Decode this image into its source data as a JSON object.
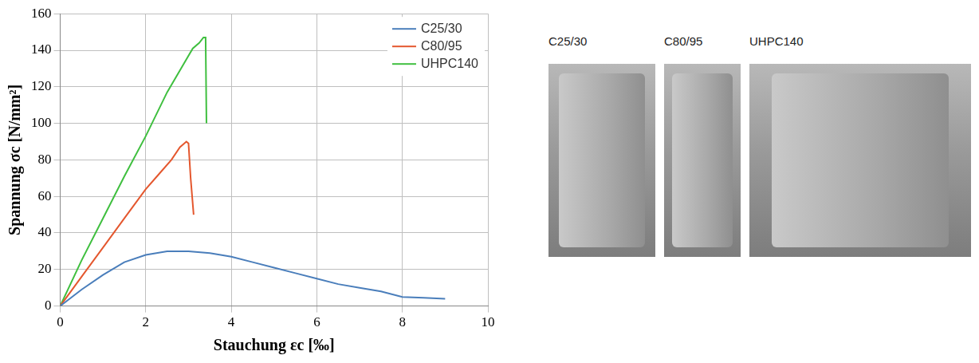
{
  "chart_data": {
    "type": "line",
    "x_label": "Stauchung εc [‰]",
    "y_label": "Spannung σc [N/mm²]",
    "xlim": [
      0,
      10
    ],
    "xticks": [
      0,
      2,
      4,
      6,
      8,
      10
    ],
    "ylim": [
      0,
      160
    ],
    "yticks": [
      0,
      20,
      40,
      60,
      80,
      100,
      120,
      140,
      160
    ],
    "grid": true,
    "legend": "upper right",
    "series": [
      {
        "name": "C25/30",
        "color": "#4a7ebb",
        "x": [
          0,
          0.5,
          1,
          1.5,
          2,
          2.5,
          3,
          3.5,
          4,
          4.5,
          5,
          5.5,
          6,
          6.5,
          7,
          7.5,
          8,
          8.5,
          9
        ],
        "values": [
          0,
          9,
          17,
          24,
          28,
          30,
          30,
          29,
          27,
          24,
          21,
          18,
          15,
          12,
          10,
          8,
          5,
          4.5,
          4
        ]
      },
      {
        "name": "C80/95",
        "color": "#e4572e",
        "x": [
          0,
          0.5,
          1,
          1.5,
          2,
          2.3,
          2.6,
          2.8,
          2.95,
          3.0,
          3.05,
          3.12
        ],
        "values": [
          0,
          16,
          32,
          48,
          64,
          72,
          80,
          87,
          90,
          89,
          70,
          50
        ]
      },
      {
        "name": "UHPC140",
        "color": "#3fbf3f",
        "x": [
          0,
          0.5,
          1,
          1.5,
          2,
          2.5,
          2.9,
          3.1,
          3.25,
          3.35,
          3.4,
          3.42
        ],
        "values": [
          0,
          25,
          48,
          71,
          93,
          117,
          133,
          141,
          144,
          147,
          147,
          100
        ]
      }
    ]
  },
  "photos": [
    {
      "label": "C25/30"
    },
    {
      "label": "C80/95"
    },
    {
      "label": "UHPC140"
    }
  ]
}
